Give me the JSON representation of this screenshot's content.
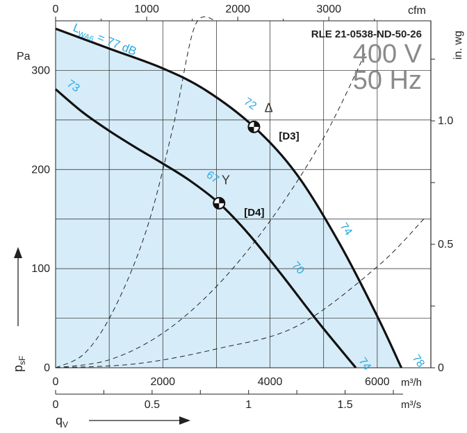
{
  "chart_data": {
    "type": "line",
    "model": "RLE 21-0538-ND-50-26",
    "voltage": "400 V",
    "frequency": "50 Hz",
    "colors": {
      "fill": "#d6ecf8",
      "accent": "#29a8e0",
      "curve": "#111111"
    },
    "axes": {
      "left": {
        "unit": "Pa",
        "range": [
          0,
          350
        ],
        "ticks": [
          0,
          100,
          200,
          300
        ]
      },
      "right": {
        "unit": "in. wg",
        "ticks": [
          0,
          0.5,
          1.0
        ]
      },
      "top": {
        "unit": "cfm",
        "ticks": [
          0,
          1000,
          2000,
          3000
        ]
      },
      "bottom_m3h": {
        "unit": "m³/h",
        "range": [
          0,
          7000
        ],
        "ticks": [
          0,
          2000,
          4000,
          6000
        ]
      },
      "bottom_m3s": {
        "unit": "m³/s",
        "ticks": [
          0,
          0.5,
          1.0,
          1.5
        ]
      },
      "xlabel": "qV",
      "ylabel": "psF"
    },
    "series": [
      {
        "name": "D3",
        "x": [
          0,
          1000,
          2000,
          2800,
          3700,
          4500,
          5300,
          6000,
          6450
        ],
        "y": [
          342,
          322,
          302,
          280,
          243,
          195,
          125,
          52,
          0
        ]
      },
      {
        "name": "D4",
        "x": [
          0,
          500,
          1000,
          1500,
          2000,
          2500,
          3050,
          3600,
          4200,
          4900,
          5600
        ],
        "y": [
          281,
          258,
          239,
          222,
          206,
          189,
          166,
          135,
          95,
          46,
          0
        ]
      }
    ],
    "system_curves": [
      {
        "x": [
          0,
          550,
          1100,
          1700,
          2200,
          2600,
          3000
        ],
        "y": [
          0,
          15,
          60,
          140,
          245,
          345,
          350
        ]
      },
      {
        "x": [
          0,
          1000,
          2000,
          3000,
          4000,
          5000,
          5800
        ],
        "y": [
          0,
          8,
          35,
          82,
          148,
          232,
          320
        ]
      },
      {
        "x": [
          0,
          1500,
          3000,
          4500,
          6000,
          6900
        ],
        "y": [
          0,
          4,
          19,
          42,
          102,
          152
        ]
      }
    ],
    "operating_points": [
      {
        "label": "[D3]",
        "x": 3700,
        "y": 243
      },
      {
        "label": "[D4]",
        "x": 3050,
        "y": 166
      }
    ],
    "markers": [
      {
        "symbol": "Δ",
        "x": 4000,
        "y": 258
      },
      {
        "symbol": "Y",
        "x": 3200,
        "y": 185
      }
    ],
    "annotations": {
      "lwa6_label": "L",
      "lwa6_sub": "WA6",
      "lwa6_value": " = 77 dB",
      "noise_labels": [
        {
          "text": "73",
          "x": 200,
          "y": 285,
          "rot": 35
        },
        {
          "text": "72",
          "x": 3500,
          "y": 267,
          "rot": 35
        },
        {
          "text": "67",
          "x": 2800,
          "y": 193,
          "rot": 35
        },
        {
          "text": "74",
          "x": 5300,
          "y": 143,
          "rot": 55
        },
        {
          "text": "70",
          "x": 4400,
          "y": 103,
          "rot": 48
        },
        {
          "text": "74",
          "x": 5650,
          "y": 7,
          "rot": 55
        },
        {
          "text": "78",
          "x": 6650,
          "y": 10,
          "rot": 55
        }
      ]
    }
  }
}
